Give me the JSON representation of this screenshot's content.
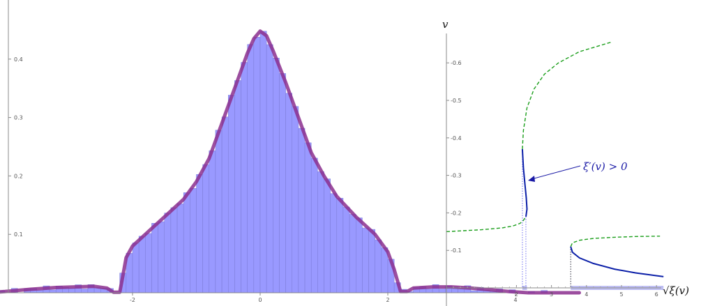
{
  "chart_data": [
    {
      "type": "bar",
      "description_hidden": true,
      "x_range": [
        -4.8,
        5.0
      ],
      "y_range": [
        0,
        0.45
      ],
      "x_ticks": [
        -2,
        0,
        2,
        4
      ],
      "y_ticks": [
        0.1,
        0.2,
        0.3,
        0.4
      ],
      "bin_width": 0.1,
      "histogram_color": "#9999ff",
      "curve_color": "#8b2f8e",
      "density_curve_points": [
        [
          -4.8,
          0.0
        ],
        [
          -4.3,
          0.0
        ],
        [
          -4.0,
          0.002
        ],
        [
          -3.6,
          0.006
        ],
        [
          -3.2,
          0.009
        ],
        [
          -2.9,
          0.01
        ],
        [
          -2.6,
          0.011
        ],
        [
          -2.4,
          0.008
        ],
        [
          -2.3,
          0.001
        ],
        [
          -2.2,
          0.001
        ],
        [
          -2.15,
          0.03
        ],
        [
          -2.1,
          0.06
        ],
        [
          -2.0,
          0.08
        ],
        [
          -1.8,
          0.1
        ],
        [
          -1.5,
          0.13
        ],
        [
          -1.2,
          0.16
        ],
        [
          -1.0,
          0.19
        ],
        [
          -0.8,
          0.23
        ],
        [
          -0.6,
          0.29
        ],
        [
          -0.4,
          0.35
        ],
        [
          -0.2,
          0.41
        ],
        [
          -0.1,
          0.435
        ],
        [
          0.0,
          0.448
        ],
        [
          0.1,
          0.44
        ],
        [
          0.2,
          0.415
        ],
        [
          0.4,
          0.36
        ],
        [
          0.6,
          0.3
        ],
        [
          0.8,
          0.24
        ],
        [
          1.0,
          0.2
        ],
        [
          1.2,
          0.165
        ],
        [
          1.5,
          0.13
        ],
        [
          1.8,
          0.1
        ],
        [
          2.0,
          0.07
        ],
        [
          2.1,
          0.04
        ],
        [
          2.2,
          0.002
        ],
        [
          2.3,
          0.002
        ],
        [
          2.4,
          0.008
        ],
        [
          2.7,
          0.01
        ],
        [
          3.0,
          0.01
        ],
        [
          3.3,
          0.008
        ],
        [
          3.6,
          0.005
        ],
        [
          3.9,
          0.002
        ],
        [
          4.2,
          0.0
        ],
        [
          5.0,
          0.0
        ]
      ]
    },
    {
      "type": "line",
      "x_ticks": [
        2,
        3,
        4,
        5,
        6
      ],
      "y_ticks": [
        -0.1,
        -0.2,
        -0.3,
        -0.4,
        -0.5,
        -0.6
      ],
      "x_range": [
        0,
        6.2
      ],
      "y_range": [
        0,
        -0.68
      ],
      "xlabel": "√ξ(v)",
      "ylabel": "v",
      "annotation": "ξ′(v) > 0",
      "series": [
        {
          "style": "dashed-green",
          "color": "#1a9e1a",
          "points": [
            [
              0.0,
              -0.15
            ],
            [
              1.0,
              -0.155
            ],
            [
              1.6,
              -0.16
            ],
            [
              1.9,
              -0.165
            ],
            [
              2.1,
              -0.172
            ],
            [
              2.2,
              -0.18
            ],
            [
              2.27,
              -0.19
            ]
          ]
        },
        {
          "style": "solid-blue",
          "color": "#0b1fa8",
          "points": [
            [
              2.27,
              -0.19
            ],
            [
              2.3,
              -0.21
            ],
            [
              2.28,
              -0.24
            ],
            [
              2.24,
              -0.28
            ],
            [
              2.2,
              -0.32
            ],
            [
              2.17,
              -0.37
            ]
          ]
        },
        {
          "style": "dashed-green",
          "color": "#1a9e1a",
          "points": [
            [
              2.17,
              -0.37
            ],
            [
              2.2,
              -0.42
            ],
            [
              2.3,
              -0.48
            ],
            [
              2.5,
              -0.53
            ],
            [
              2.8,
              -0.57
            ],
            [
              3.2,
              -0.6
            ],
            [
              3.8,
              -0.63
            ],
            [
              4.7,
              -0.655
            ]
          ]
        },
        {
          "style": "dashed-green",
          "color": "#1a9e1a",
          "points": [
            [
              3.55,
              -0.11
            ],
            [
              3.6,
              -0.12
            ],
            [
              3.8,
              -0.127
            ],
            [
              4.2,
              -0.132
            ],
            [
              4.8,
              -0.135
            ],
            [
              5.4,
              -0.137
            ],
            [
              6.1,
              -0.138
            ]
          ]
        },
        {
          "style": "solid-blue",
          "color": "#0b1fa8",
          "points": [
            [
              3.55,
              -0.11
            ],
            [
              3.6,
              -0.095
            ],
            [
              3.8,
              -0.08
            ],
            [
              4.2,
              -0.065
            ],
            [
              4.8,
              -0.05
            ],
            [
              5.4,
              -0.04
            ],
            [
              6.2,
              -0.03
            ]
          ]
        }
      ]
    }
  ]
}
